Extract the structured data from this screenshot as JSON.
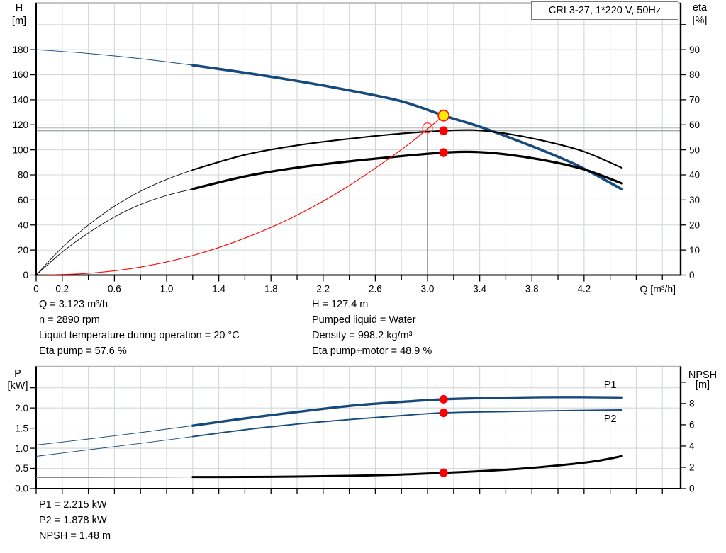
{
  "title_box": "CRI 3-27, 1*220 V, 50Hz",
  "colors": {
    "curve_blue": "#164a7d",
    "curve_black": "#000000",
    "system_red": "#ff0000",
    "marker_red": "#ff0000",
    "marker_yellow": "#ffeb00",
    "grid": "#d4d8d8",
    "frame_top": "#b0b4b4",
    "axis": "#000000",
    "crosshair_v": "#8a8a8a",
    "crosshair_h": "#c2c6c6",
    "crosshair_eta": "#9aa0a0",
    "npsh_thin": "#8a8a8a"
  },
  "info_top": {
    "left": [
      "Q = 3.123 m³/h",
      "n = 2890 rpm",
      "Liquid temperature during operation = 20 °C",
      "Eta pump = 57.6 %"
    ],
    "right": [
      "H = 127.4 m",
      "Pumped liquid = Water",
      "Density = 998.2 kg/m³",
      "Eta pump+motor = 48.9 %"
    ]
  },
  "info_bottom": [
    "P1 = 2.215 kW",
    "P2 = 1.878 kW",
    "NPSH = 1.48 m"
  ],
  "duty": {
    "q_m3h": 3.123,
    "h_m": 127.4,
    "eta_pump_pct": 57.6,
    "eta_pump_motor_pct": 48.9,
    "p1_kw": 2.215,
    "p2_kw": 1.878,
    "npsh_m": 1.48,
    "speed_rpm": 2890,
    "requested_q_m3h": 3.0,
    "requested_h_m": 117.5
  },
  "chart_data": [
    {
      "name": "hq-eta-chart",
      "type": "line",
      "title": "CRI 3-27, 1*220 V, 50Hz",
      "x": {
        "min": 0,
        "max": 4.94,
        "tick_step": 0.2,
        "tick_max": 4.8,
        "unit": "Q [m³/h]",
        "labeled_ticks": [
          {
            "v": 0,
            "t": "0"
          },
          {
            "v": 0.2,
            "t": "0.2"
          },
          {
            "v": 0.6,
            "t": "0.6"
          },
          {
            "v": 1,
            "t": "1.0"
          },
          {
            "v": 1.4,
            "t": "1.4"
          },
          {
            "v": 1.8,
            "t": "1.8"
          },
          {
            "v": 2.2,
            "t": "2.2"
          },
          {
            "v": 2.6,
            "t": "2.6"
          },
          {
            "v": 3,
            "t": "3.0"
          },
          {
            "v": 3.4,
            "t": "3.4"
          },
          {
            "v": 3.8,
            "t": "3.8"
          },
          {
            "v": 4.2,
            "t": "4.2"
          }
        ]
      },
      "y_left": {
        "min": 0,
        "max": 217.4,
        "grid_step": 20,
        "grid_max": 200,
        "unit": [
          "H",
          "[m]"
        ],
        "ticks": [
          {
            "v": 0,
            "t": "0"
          },
          {
            "v": 20,
            "t": "20"
          },
          {
            "v": 40,
            "t": "40"
          },
          {
            "v": 60,
            "t": "60"
          },
          {
            "v": 80,
            "t": "80"
          },
          {
            "v": 100,
            "t": "100"
          },
          {
            "v": 120,
            "t": "120"
          },
          {
            "v": 140,
            "t": "140"
          },
          {
            "v": 160,
            "t": "160"
          },
          {
            "v": 180,
            "t": "180"
          }
        ]
      },
      "y_right": {
        "min": 0,
        "max": 108.7,
        "unit": [
          "eta",
          "[%]"
        ],
        "ticks": [
          {
            "v": 0,
            "t": "0"
          },
          {
            "v": 10,
            "t": "10"
          },
          {
            "v": 20,
            "t": "20"
          },
          {
            "v": 30,
            "t": "30"
          },
          {
            "v": 40,
            "t": "40"
          },
          {
            "v": 50,
            "t": "50"
          },
          {
            "v": 60,
            "t": "60"
          },
          {
            "v": 70,
            "t": "70"
          },
          {
            "v": 80,
            "t": "80"
          },
          {
            "v": 90,
            "t": "90"
          },
          {
            "v": 100,
            "t": ""
          }
        ]
      },
      "crosshair": {
        "q": 3.0,
        "h": 117.5,
        "eta": 57.6
      },
      "series": [
        {
          "name": "head-curve",
          "axis": "left",
          "color": "#164a7d",
          "thin_width": 1.0,
          "width": 3.6,
          "split": 1.2,
          "points": [
            [
              0,
              180
            ],
            [
              0.4,
              177
            ],
            [
              0.8,
              172.8
            ],
            [
              1.2,
              167.6
            ],
            [
              1.6,
              161.6
            ],
            [
              2.0,
              155
            ],
            [
              2.4,
              147.5
            ],
            [
              2.8,
              138.8
            ],
            [
              3.123,
              127.4
            ],
            [
              3.4,
              118.5
            ],
            [
              3.7,
              107
            ],
            [
              4.0,
              94.5
            ],
            [
              4.2,
              85
            ],
            [
              4.49,
              68.5
            ]
          ]
        },
        {
          "name": "eta-pump-curve",
          "axis": "right",
          "color": "#000000",
          "thin_width": 0.9,
          "width": 2.1,
          "split": 1.2,
          "points": [
            [
              0,
              0
            ],
            [
              0.2,
              11
            ],
            [
              0.4,
              20
            ],
            [
              0.6,
              27.5
            ],
            [
              0.8,
              33.5
            ],
            [
              1.0,
              38.2
            ],
            [
              1.2,
              42
            ],
            [
              1.6,
              48
            ],
            [
              2.0,
              51.8
            ],
            [
              2.4,
              54.4
            ],
            [
              2.8,
              56.5
            ],
            [
              3.123,
              57.6
            ],
            [
              3.35,
              57.9
            ],
            [
              3.6,
              56.5
            ],
            [
              3.9,
              53.5
            ],
            [
              4.2,
              49.3
            ],
            [
              4.49,
              42.8
            ]
          ]
        },
        {
          "name": "eta-pump-motor-curve",
          "axis": "right",
          "color": "#000000",
          "thin_width": 0.9,
          "width": 3.3,
          "split": 1.2,
          "points": [
            [
              0,
              0
            ],
            [
              0.2,
              9.2
            ],
            [
              0.4,
              16.8
            ],
            [
              0.6,
              23.2
            ],
            [
              0.8,
              28.2
            ],
            [
              1.0,
              31.8
            ],
            [
              1.2,
              34.4
            ],
            [
              1.6,
              39.4
            ],
            [
              2.0,
              42.9
            ],
            [
              2.4,
              45.4
            ],
            [
              2.8,
              47.5
            ],
            [
              3.123,
              48.9
            ],
            [
              3.35,
              49.2
            ],
            [
              3.6,
              48.2
            ],
            [
              3.9,
              45.8
            ],
            [
              4.2,
              42.2
            ],
            [
              4.49,
              36.6
            ]
          ]
        },
        {
          "name": "system-curve",
          "axis": "left",
          "color": "#ff0000",
          "thin_width": 1.1,
          "width": 1.1,
          "split": null,
          "points": [
            [
              0,
              0
            ],
            [
              0.4,
              1.4
            ],
            [
              0.8,
              6.4
            ],
            [
              1.2,
              15.6
            ],
            [
              1.6,
              29.5
            ],
            [
              2.0,
              47.9
            ],
            [
              2.4,
              71.5
            ],
            [
              2.8,
              100.2
            ],
            [
              3.0,
              116.7
            ],
            [
              3.123,
              127.4
            ]
          ]
        }
      ],
      "markers": [
        {
          "name": "requested-duty-point",
          "q": 3.0,
          "v": 117.5,
          "axis": "left",
          "kind": "ring",
          "color": "#ff4444",
          "r": 7
        },
        {
          "name": "actual-duty-point",
          "q": 3.123,
          "v": 127.4,
          "axis": "left",
          "kind": "filled-ring",
          "fill": "#ffeb00",
          "color": "#ff1111",
          "r": 7.5
        },
        {
          "name": "eta-pump-duty-dot",
          "q": 3.123,
          "v": 57.6,
          "axis": "right",
          "kind": "dot",
          "fill": "#ff0000",
          "r": 6.2
        },
        {
          "name": "eta-pump-motor-duty-dot",
          "q": 3.123,
          "v": 48.9,
          "axis": "right",
          "kind": "dot",
          "fill": "#ff0000",
          "r": 6.2
        }
      ]
    },
    {
      "name": "power-npsh-chart",
      "type": "line",
      "x": {
        "min": 0,
        "max": 4.94,
        "tick_step": 0.2,
        "tick_max": 4.8,
        "unit": "",
        "labeled_ticks": []
      },
      "y_left": {
        "min": 0,
        "max": 3.03,
        "grid_step": 0.5,
        "grid_max": 2.5,
        "unit": [
          "P",
          "[kW]"
        ],
        "ticks": [
          {
            "v": 0,
            "t": "0.0"
          },
          {
            "v": 0.5,
            "t": "0.5"
          },
          {
            "v": 1,
            "t": "1.0"
          },
          {
            "v": 1.5,
            "t": "1.5"
          },
          {
            "v": 2,
            "t": "2.0"
          },
          {
            "v": 2.5,
            "t": ""
          }
        ]
      },
      "y_right": {
        "min": 0,
        "max": 11.49,
        "unit": [
          "NPSH",
          "[m]"
        ],
        "ticks": [
          {
            "v": 0,
            "t": "0"
          },
          {
            "v": 2,
            "t": "2"
          },
          {
            "v": 4,
            "t": "4"
          },
          {
            "v": 6,
            "t": "6"
          },
          {
            "v": 8,
            "t": "8"
          },
          {
            "v": 10,
            "t": ""
          }
        ]
      },
      "series": [
        {
          "name": "p1-curve",
          "axis": "left",
          "color": "#164a7d",
          "thin_width": 1.0,
          "width": 3.4,
          "split": 1.2,
          "label": "P1",
          "label_pos": [
            4.4,
            2.49
          ],
          "points": [
            [
              0,
              1.08
            ],
            [
              0.4,
              1.23
            ],
            [
              0.8,
              1.39
            ],
            [
              1.2,
              1.56
            ],
            [
              1.6,
              1.74
            ],
            [
              2.0,
              1.9
            ],
            [
              2.4,
              2.05
            ],
            [
              2.8,
              2.15
            ],
            [
              3.123,
              2.215
            ],
            [
              3.5,
              2.25
            ],
            [
              4.0,
              2.27
            ],
            [
              4.49,
              2.26
            ]
          ]
        },
        {
          "name": "p2-curve",
          "axis": "left",
          "color": "#164a7d",
          "thin_width": 0.9,
          "width": 1.9,
          "split": 1.2,
          "label": "P2",
          "label_pos": [
            4.4,
            1.65
          ],
          "points": [
            [
              0,
              0.8
            ],
            [
              0.4,
              0.96
            ],
            [
              0.8,
              1.12
            ],
            [
              1.2,
              1.29
            ],
            [
              1.6,
              1.46
            ],
            [
              2.0,
              1.6
            ],
            [
              2.4,
              1.71
            ],
            [
              2.8,
              1.81
            ],
            [
              3.123,
              1.878
            ],
            [
              3.6,
              1.91
            ],
            [
              4.0,
              1.93
            ],
            [
              4.49,
              1.95
            ]
          ]
        },
        {
          "name": "npsh-curve",
          "axis": "right",
          "color": "#000000",
          "thin_width": 1.1,
          "thin_color": "#8a8a8a",
          "width": 3.0,
          "split": 1.2,
          "points": [
            [
              0,
              1.03
            ],
            [
              0.4,
              1.04
            ],
            [
              0.8,
              1.06
            ],
            [
              1.2,
              1.09
            ],
            [
              1.6,
              1.1
            ],
            [
              2.0,
              1.13
            ],
            [
              2.4,
              1.2
            ],
            [
              2.8,
              1.32
            ],
            [
              3.123,
              1.48
            ],
            [
              3.5,
              1.7
            ],
            [
              3.8,
              1.95
            ],
            [
              4.1,
              2.3
            ],
            [
              4.3,
              2.6
            ],
            [
              4.49,
              3.05
            ]
          ]
        }
      ],
      "markers": [
        {
          "name": "p1-duty-dot",
          "q": 3.123,
          "v": 2.215,
          "axis": "left",
          "kind": "dot",
          "fill": "#ff0000",
          "r": 6
        },
        {
          "name": "p2-duty-dot",
          "q": 3.123,
          "v": 1.878,
          "axis": "left",
          "kind": "dot",
          "fill": "#ff0000",
          "r": 6
        },
        {
          "name": "npsh-duty-dot",
          "q": 3.123,
          "v": 1.48,
          "axis": "right",
          "kind": "dot",
          "fill": "#ff0000",
          "r": 6
        }
      ]
    }
  ]
}
